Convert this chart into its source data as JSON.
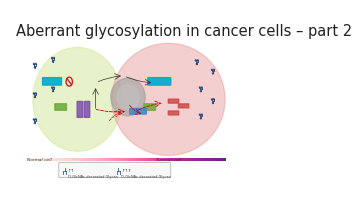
{
  "title": "Aberrant glycosylation in cancer cells – part 2",
  "title_fontsize": 10.5,
  "bg_color": "#ffffff",
  "normal_cell_color": "#d6e8a0",
  "tumor_cell_color": "#e8a0a0",
  "nucleus_color": "#b0b0b0",
  "teal_color": "#00aacc",
  "purple_color": "#7b4fa6",
  "green_color": "#6aaa3a",
  "blue_box_color": "#4488cc",
  "red_color": "#cc2222",
  "antibody_color": "#336699",
  "dark_color": "#333333",
  "legend_edge": "#aaaaaa",
  "legend_face": "#f8f8f8"
}
